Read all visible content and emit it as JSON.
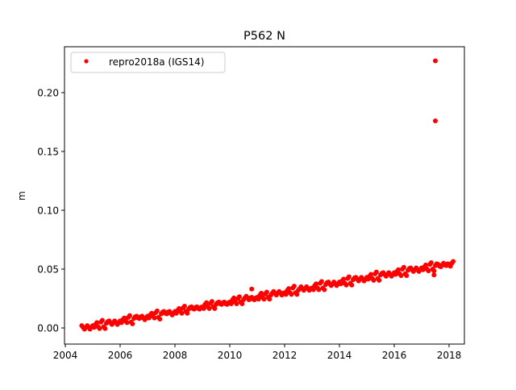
{
  "chart_data": {
    "type": "scatter",
    "title": "P562 N",
    "xlabel": "",
    "ylabel": "m",
    "xlim": [
      2003.97,
      2018.56
    ],
    "ylim": [
      -0.0137,
      0.239
    ],
    "xticks": [
      2004,
      2006,
      2008,
      2010,
      2012,
      2014,
      2016,
      2018
    ],
    "xtick_labels": [
      "2004",
      "2006",
      "2008",
      "2010",
      "2012",
      "2014",
      "2016",
      "2018"
    ],
    "yticks": [
      0.0,
      0.05,
      0.1,
      0.15,
      0.2
    ],
    "ytick_labels": [
      "0.00",
      "0.05",
      "0.10",
      "0.15",
      "0.20"
    ],
    "grid": false,
    "legend_position": "top-left",
    "series": [
      {
        "name": "repro2018a (IGS14)",
        "color": "#ff0000",
        "marker": "circle",
        "x_start": 2004.6,
        "x_step": 0.1,
        "y": [
          0.002,
          -0.001,
          0.002,
          -0.001,
          0.002,
          0.003,
          0.001,
          0.005,
          0.001,
          0.004,
          0.006,
          0.003,
          0.006,
          0.003,
          0.006,
          0.007,
          0.006,
          0.009,
          0.005,
          0.008,
          0.01,
          0.008,
          0.01,
          0.007,
          0.01,
          0.011,
          0.01,
          0.013,
          0.009,
          0.012,
          0.014,
          0.012,
          0.014,
          0.011,
          0.014,
          0.015,
          0.014,
          0.017,
          0.014,
          0.016,
          0.018,
          0.016,
          0.018,
          0.016,
          0.018,
          0.02,
          0.018,
          0.021,
          0.018,
          0.02,
          0.022,
          0.02,
          0.022,
          0.02,
          0.022,
          0.024,
          0.022,
          0.025,
          0.022,
          0.024,
          0.027,
          0.024,
          0.026,
          0.024,
          0.026,
          0.028,
          0.026,
          0.029,
          0.026,
          0.028,
          0.031,
          0.028,
          0.031,
          0.028,
          0.03,
          0.032,
          0.03,
          0.034,
          0.03,
          0.032,
          0.035,
          0.032,
          0.035,
          0.032,
          0.034,
          0.036,
          0.034,
          0.038,
          0.034,
          0.037,
          0.039,
          0.036,
          0.039,
          0.036,
          0.039,
          0.04,
          0.038,
          0.042,
          0.038,
          0.041,
          0.043,
          0.04,
          0.043,
          0.04,
          0.043,
          0.044,
          0.042,
          0.046,
          0.042,
          0.045,
          0.047,
          0.044,
          0.047,
          0.044,
          0.047,
          0.048,
          0.046,
          0.05,
          0.046,
          0.049,
          0.051,
          0.048,
          0.051,
          0.048,
          0.051,
          0.052,
          0.05,
          0.054,
          0.05,
          0.053,
          0.054,
          0.052,
          0.055,
          0.053,
          0.054,
          0.055
        ],
        "outliers": [
          {
            "x": 2017.5,
            "y": 0.227
          },
          {
            "x": 2017.5,
            "y": 0.176
          },
          {
            "x": 2010.8,
            "y": 0.033
          },
          {
            "x": 2017.45,
            "y": 0.045
          }
        ]
      }
    ]
  }
}
